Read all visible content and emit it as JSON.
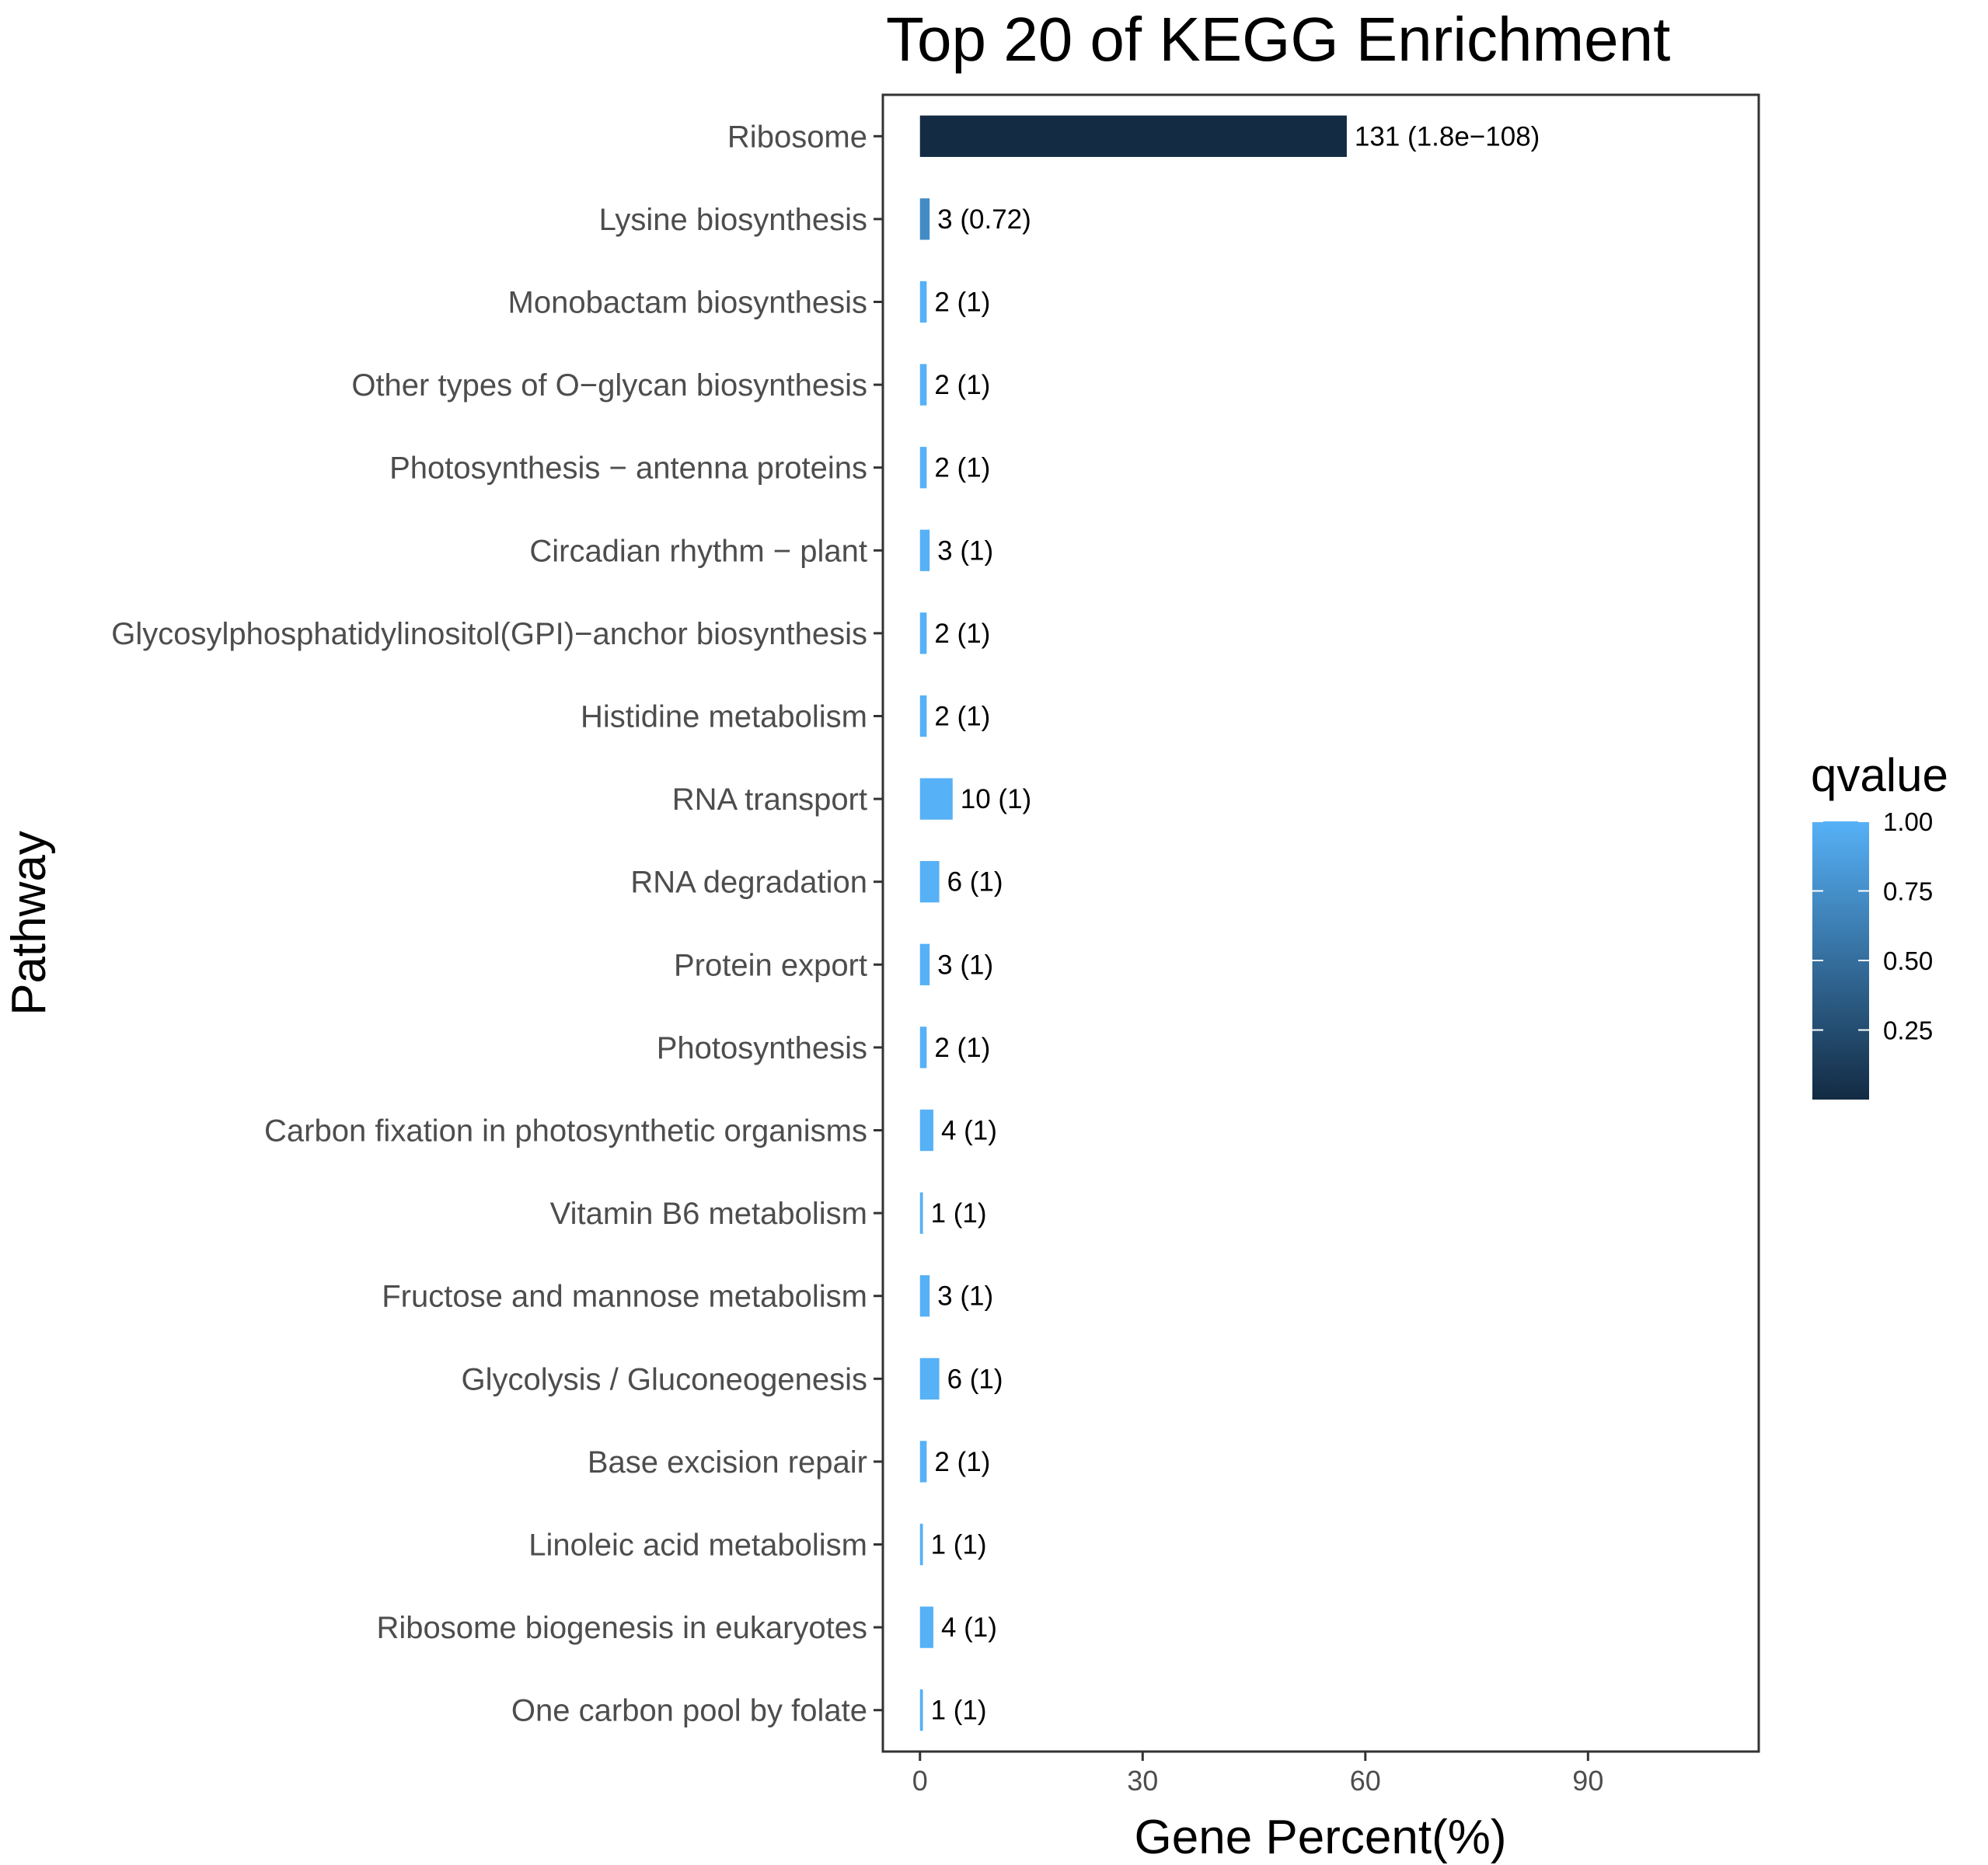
{
  "chart_data": {
    "type": "bar",
    "orientation": "horizontal",
    "title": "Top 20 of KEGG Enrichment",
    "xlabel": "Gene Percent(%)",
    "ylabel": "Pathway",
    "xlim": [
      -5,
      113
    ],
    "xticks": [
      0,
      30,
      60,
      90
    ],
    "grid": false,
    "legend": {
      "title": "qvalue",
      "placement": "right",
      "ticks": [
        "1.00",
        "0.75",
        "0.50",
        "0.25"
      ],
      "tick_values": [
        1.0,
        0.75,
        0.5,
        0.25
      ],
      "range": [
        0.0,
        1.0
      ],
      "low_color": "#132B43",
      "high_color": "#56B1F7"
    },
    "categories": [
      "Ribosome",
      "Lysine biosynthesis",
      "Monobactam biosynthesis",
      "Other types of O−glycan biosynthesis",
      "Photosynthesis − antenna proteins",
      "Circadian rhythm − plant",
      "Glycosylphosphatidylinositol(GPI)−anchor biosynthesis",
      "Histidine metabolism",
      "RNA transport",
      "RNA degradation",
      "Protein export",
      "Photosynthesis",
      "Carbon fixation in photosynthetic organisms",
      "Vitamin B6 metabolism",
      "Fructose and mannose metabolism",
      "Glycolysis / Gluconeogenesis",
      "Base excision repair",
      "Linoleic acid metabolism",
      "Ribosome biogenesis in eukaryotes",
      "One carbon pool by folate"
    ],
    "values": [
      57.5,
      1.3,
      0.9,
      0.9,
      0.9,
      1.3,
      0.9,
      0.9,
      4.4,
      2.6,
      1.3,
      0.9,
      1.8,
      0.4,
      1.3,
      2.6,
      0.9,
      0.4,
      1.8,
      0.4
    ],
    "qvalues": [
      0.0,
      0.72,
      1,
      1,
      1,
      1,
      1,
      1,
      1,
      1,
      1,
      1,
      1,
      1,
      1,
      1,
      1,
      1,
      1,
      1
    ],
    "bar_labels": [
      "131 (1.8e−108)",
      "3 (0.72)",
      "2 (1)",
      "2 (1)",
      "2 (1)",
      "3 (1)",
      "2 (1)",
      "2 (1)",
      "10 (1)",
      "6 (1)",
      "3 (1)",
      "2 (1)",
      "4 (1)",
      "1 (1)",
      "3 (1)",
      "6 (1)",
      "2 (1)",
      "1 (1)",
      "4 (1)",
      "1 (1)"
    ]
  }
}
